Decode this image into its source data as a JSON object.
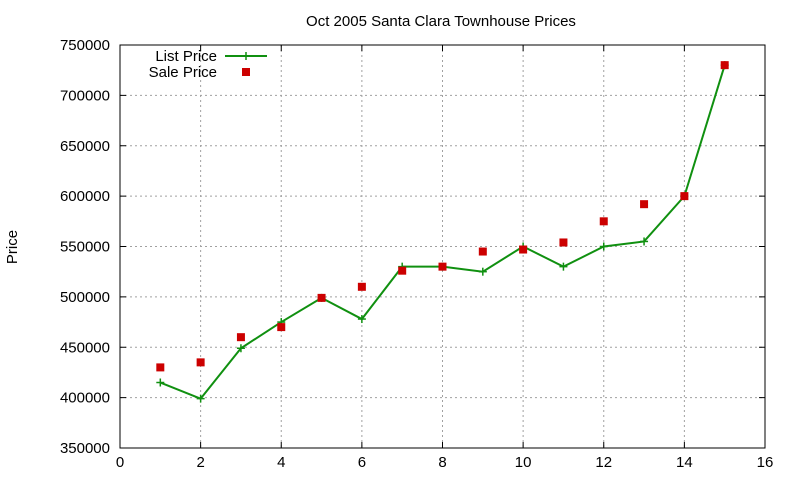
{
  "chart_data": {
    "type": "line",
    "title": "Oct 2005 Santa Clara Townhouse Prices",
    "xlabel": "",
    "ylabel": "Price",
    "xlim": [
      0,
      16
    ],
    "ylim": [
      350000,
      750000
    ],
    "xticks": [
      0,
      2,
      4,
      6,
      8,
      10,
      12,
      14,
      16
    ],
    "yticks": [
      350000,
      400000,
      450000,
      500000,
      550000,
      600000,
      650000,
      700000,
      750000
    ],
    "grid": true,
    "legend_position": "top-left",
    "series": [
      {
        "name": "List Price",
        "style": "line+cross",
        "color": "#109010",
        "x": [
          1,
          2,
          3,
          4,
          5,
          6,
          7,
          8,
          9,
          10,
          11,
          12,
          13,
          14,
          15
        ],
        "y": [
          415000,
          399000,
          449000,
          475000,
          499000,
          478000,
          530000,
          530000,
          525000,
          550000,
          530000,
          550000,
          555000,
          600000,
          730000
        ]
      },
      {
        "name": "Sale Price",
        "style": "square",
        "color": "#cc0000",
        "x": [
          1,
          2,
          3,
          4,
          5,
          6,
          7,
          8,
          9,
          10,
          11,
          12,
          13,
          14,
          15
        ],
        "y": [
          430000,
          435000,
          460000,
          470000,
          499000,
          510000,
          526000,
          530000,
          545000,
          547000,
          554000,
          575000,
          592000,
          600000,
          730000
        ]
      }
    ]
  }
}
